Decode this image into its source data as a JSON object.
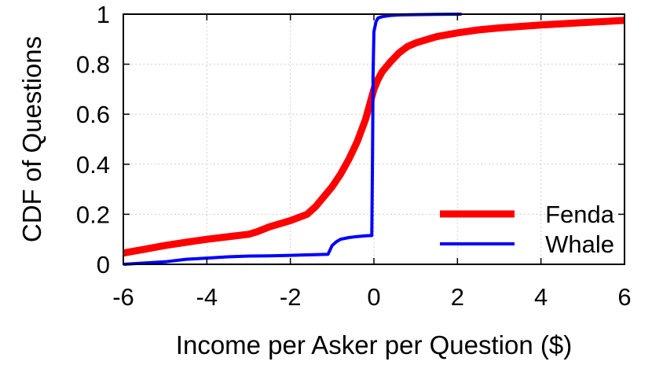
{
  "chart_data": {
    "type": "line",
    "xlabel": "Income per Asker per Question ($)",
    "ylabel": "CDF of Questions",
    "xlim": [
      -6,
      6
    ],
    "ylim": [
      0,
      1
    ],
    "x_ticks": [
      -6,
      -4,
      -2,
      0,
      2,
      4,
      6
    ],
    "y_ticks": [
      0,
      0.2,
      0.4,
      0.6,
      0.8,
      1
    ],
    "x_tick_labels": [
      "-6",
      "-4",
      "-2",
      "0",
      "2",
      "4",
      "6"
    ],
    "y_tick_labels": [
      "0",
      "0.2",
      "0.4",
      "0.6",
      "0.8",
      "1"
    ],
    "grid": true,
    "legend_position": "bottom-right",
    "series": [
      {
        "name": "Fenda",
        "color": "#ff0000",
        "x": [
          -6,
          -5.5,
          -5,
          -4.5,
          -4,
          -3.5,
          -3,
          -2.8,
          -2.5,
          -2,
          -1.6,
          -1.4,
          -1.2,
          -1,
          -0.8,
          -0.6,
          -0.4,
          -0.2,
          -0.1,
          0,
          0.1,
          0.2,
          0.4,
          0.6,
          0.8,
          1,
          1.5,
          2,
          2.5,
          3,
          4,
          5,
          6
        ],
        "y": [
          0.045,
          0.06,
          0.075,
          0.088,
          0.1,
          0.11,
          0.12,
          0.13,
          0.15,
          0.175,
          0.2,
          0.23,
          0.27,
          0.31,
          0.36,
          0.42,
          0.49,
          0.58,
          0.64,
          0.7,
          0.74,
          0.77,
          0.81,
          0.845,
          0.87,
          0.885,
          0.91,
          0.925,
          0.937,
          0.945,
          0.957,
          0.966,
          0.975
        ]
      },
      {
        "name": "Whale",
        "color": "#0000ff",
        "x": [
          -6,
          -5.5,
          -5,
          -4.5,
          -4,
          -3.5,
          -3,
          -2.5,
          -2,
          -1.5,
          -1.1,
          -1.0,
          -0.9,
          -0.8,
          -0.6,
          -0.4,
          -0.2,
          -0.05,
          -0.03,
          -0.02,
          -0.01,
          0,
          0.05,
          0.1,
          0.2,
          0.4,
          0.6,
          1,
          1.5,
          2.1
        ],
        "y": [
          0,
          0.005,
          0.01,
          0.02,
          0.025,
          0.03,
          0.033,
          0.034,
          0.036,
          0.038,
          0.04,
          0.075,
          0.09,
          0.1,
          0.107,
          0.111,
          0.114,
          0.115,
          0.5,
          0.75,
          0.85,
          0.93,
          0.97,
          0.985,
          0.99,
          0.995,
          0.997,
          0.998,
          0.999,
          1.0
        ]
      }
    ]
  }
}
